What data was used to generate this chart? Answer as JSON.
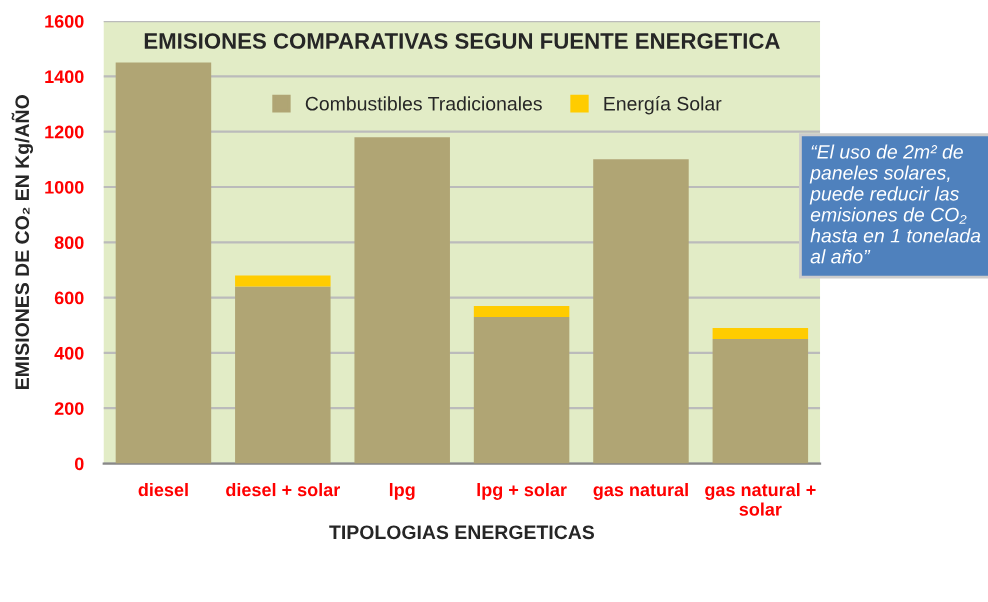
{
  "chart_data": {
    "type": "bar",
    "title": "EMISIONES COMPARATIVAS SEGUN FUENTE ENERGETICA",
    "xlabel": "TIPOLOGIAS ENERGETICAS",
    "ylabel": "EMISIONES DE CO₂ EN Kg/AÑO",
    "categories": [
      "diesel",
      "diesel + solar",
      "lpg",
      "lpg + solar",
      "gas natural",
      "gas natural +\nsolar"
    ],
    "stacked": true,
    "series": [
      {
        "name": "Combustibles Tradicionales",
        "color": "#b0a574",
        "values": [
          1450,
          640,
          1180,
          530,
          1100,
          450
        ]
      },
      {
        "name": "Energía Solar",
        "color": "#ffcc00",
        "values": [
          null,
          40,
          null,
          40,
          null,
          40
        ]
      }
    ],
    "ylim": [
      0,
      1600
    ],
    "yticks": [
      0,
      200,
      400,
      600,
      800,
      1000,
      1200,
      1400,
      1600
    ],
    "grid": "y",
    "legend": "top",
    "annotations": [
      "“El uso de 2m² de paneles solares, puede reducir las emisiones de CO₂ hasta en 1 tonelada al año”"
    ]
  }
}
